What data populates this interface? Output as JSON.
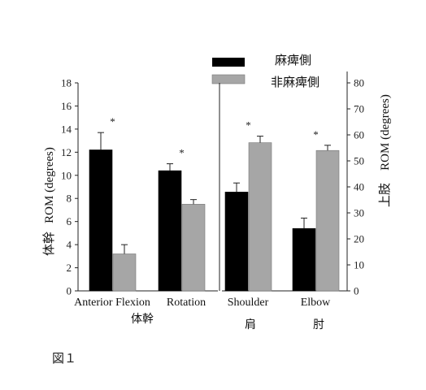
{
  "chart_data": {
    "type": "bar",
    "legend": {
      "placement": "top-right",
      "entries": [
        "麻痺側",
        "非麻痺側"
      ]
    },
    "series": [
      {
        "name": "麻痺側",
        "color": "#000000"
      },
      {
        "name": "非麻痺側",
        "color": "#a6a6a6"
      }
    ],
    "left_axis": {
      "label_primary": "ROM (degrees)",
      "label_secondary": "体幹",
      "ylim": [
        0,
        18
      ],
      "ticks": [
        "0",
        "2",
        "4",
        "6",
        "8",
        "10",
        "12",
        "14",
        "16",
        "18"
      ]
    },
    "right_axis": {
      "label_primary": "ROM (degrees)",
      "label_secondary": "上肢",
      "ylim": [
        0,
        80
      ],
      "ticks": [
        "0",
        "10",
        "20",
        "30",
        "40",
        "50",
        "60",
        "70",
        "80"
      ]
    },
    "groups": [
      {
        "category": "Anterior Flexion",
        "axis": "left",
        "values": [
          12.2,
          3.2
        ],
        "errors": [
          1.5,
          0.8
        ],
        "significance": "*"
      },
      {
        "category": "Rotation",
        "axis": "left",
        "values": [
          10.4,
          7.5
        ],
        "errors": [
          0.6,
          0.4
        ],
        "significance": "*"
      },
      {
        "category": "Shoulder",
        "axis": "right",
        "values": [
          38,
          57
        ],
        "errors": [
          3.5,
          2.5
        ],
        "significance": "*"
      },
      {
        "category": "Elbow",
        "axis": "right",
        "values": [
          24,
          54
        ],
        "errors": [
          4,
          2
        ],
        "significance": "*"
      }
    ],
    "region_labels": [
      {
        "text": "体幹",
        "groups": [
          "Anterior Flexion",
          "Rotation"
        ]
      },
      {
        "text": "肩",
        "groups": [
          "Shoulder"
        ]
      },
      {
        "text": "肘",
        "groups": [
          "Elbow"
        ]
      }
    ],
    "grid": false
  },
  "caption": "図１"
}
